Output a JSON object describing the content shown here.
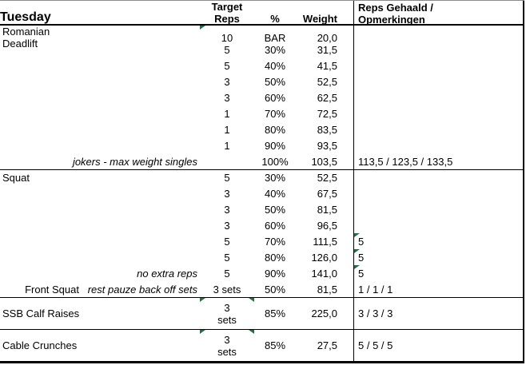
{
  "sheet": {
    "title": "Tuesday",
    "header": {
      "target": "Target\nReps",
      "percent": "%",
      "weight": "Weight",
      "comments": "Reps Gehaald /\nOpmerkingen"
    },
    "colors": {
      "indicator_green": "#1e7145",
      "border_black": "#000000",
      "background": "#ffffff"
    },
    "rows": [
      {
        "exercise": "Romanian Deadlift",
        "note": "",
        "target": "10",
        "percent": "BAR",
        "weight": "20,0",
        "comments": "",
        "indicators": {
          "target_left": true,
          "target_right": false,
          "comment_left": false
        },
        "section_start": false
      },
      {
        "exercise": "",
        "note": "",
        "target": "5",
        "percent": "30%",
        "weight": "31,5",
        "comments": "",
        "indicators": {
          "target_left": false,
          "target_right": false,
          "comment_left": false
        },
        "section_start": false
      },
      {
        "exercise": "",
        "note": "",
        "target": "5",
        "percent": "40%",
        "weight": "41,5",
        "comments": "",
        "indicators": {
          "target_left": false,
          "target_right": false,
          "comment_left": false
        },
        "section_start": false
      },
      {
        "exercise": "",
        "note": "",
        "target": "3",
        "percent": "50%",
        "weight": "52,5",
        "comments": "",
        "indicators": {
          "target_left": false,
          "target_right": false,
          "comment_left": false
        },
        "section_start": false
      },
      {
        "exercise": "",
        "note": "",
        "target": "3",
        "percent": "60%",
        "weight": "62,5",
        "comments": "",
        "indicators": {
          "target_left": false,
          "target_right": false,
          "comment_left": false
        },
        "section_start": false
      },
      {
        "exercise": "",
        "note": "",
        "target": "1",
        "percent": "70%",
        "weight": "72,5",
        "comments": "",
        "indicators": {
          "target_left": false,
          "target_right": false,
          "comment_left": false
        },
        "section_start": false
      },
      {
        "exercise": "",
        "note": "",
        "target": "1",
        "percent": "80%",
        "weight": "83,5",
        "comments": "",
        "indicators": {
          "target_left": false,
          "target_right": false,
          "comment_left": false
        },
        "section_start": false
      },
      {
        "exercise": "",
        "note": "",
        "target": "1",
        "percent": "90%",
        "weight": "93,5",
        "comments": "",
        "indicators": {
          "target_left": false,
          "target_right": false,
          "comment_left": false
        },
        "section_start": false
      },
      {
        "exercise": "",
        "note": "jokers - max weight singles",
        "target": "",
        "percent": "100%",
        "weight": "103,5",
        "comments": "113,5 / 123,5 / 133,5",
        "indicators": {
          "target_left": false,
          "target_right": false,
          "comment_left": false
        },
        "section_start": false
      },
      {
        "exercise": "Squat",
        "note": "",
        "target": "5",
        "percent": "30%",
        "weight": "52,5",
        "comments": "",
        "indicators": {
          "target_left": false,
          "target_right": false,
          "comment_left": false
        },
        "section_start": true
      },
      {
        "exercise": "",
        "note": "",
        "target": "3",
        "percent": "40%",
        "weight": "67,5",
        "comments": "",
        "indicators": {
          "target_left": false,
          "target_right": false,
          "comment_left": false
        },
        "section_start": false
      },
      {
        "exercise": "",
        "note": "",
        "target": "3",
        "percent": "50%",
        "weight": "81,5",
        "comments": "",
        "indicators": {
          "target_left": false,
          "target_right": false,
          "comment_left": false
        },
        "section_start": false
      },
      {
        "exercise": "",
        "note": "",
        "target": "3",
        "percent": "60%",
        "weight": "96,5",
        "comments": "",
        "indicators": {
          "target_left": false,
          "target_right": false,
          "comment_left": false
        },
        "section_start": false
      },
      {
        "exercise": "",
        "note": "",
        "target": "5",
        "percent": "70%",
        "weight": "111,5",
        "comments": "5",
        "indicators": {
          "target_left": false,
          "target_right": false,
          "comment_left": true
        },
        "section_start": false
      },
      {
        "exercise": "",
        "note": "",
        "target": "5",
        "percent": "80%",
        "weight": "126,0",
        "comments": "5",
        "indicators": {
          "target_left": false,
          "target_right": false,
          "comment_left": true
        },
        "section_start": false
      },
      {
        "exercise": "",
        "note": "no extra reps",
        "target": "5",
        "percent": "90%",
        "weight": "141,0",
        "comments": "5",
        "indicators": {
          "target_left": false,
          "target_right": false,
          "comment_left": true
        },
        "section_start": false
      },
      {
        "exercise": "Front Squat",
        "exercise_align": "right",
        "note": "rest pauze back off sets",
        "target": "3 sets",
        "percent": "50%",
        "weight": "81,5",
        "comments": "1 / 1 / 1",
        "indicators": {
          "target_left": false,
          "target_right": false,
          "comment_left": false
        },
        "section_start": false
      },
      {
        "exercise": "SSB Calf Raises",
        "note": "",
        "target": "3\nsets",
        "percent": "85%",
        "weight": "225,0",
        "comments": "3 / 3 / 3",
        "indicators": {
          "target_left": true,
          "target_right": true,
          "comment_left": false
        },
        "section_start": true
      },
      {
        "exercise": "Cable Crunches",
        "note": "",
        "target": "3\nsets",
        "percent": "85%",
        "weight": "27,5",
        "comments": "5 / 5 / 5",
        "indicators": {
          "target_left": true,
          "target_right": true,
          "comment_left": false
        },
        "section_start": true
      }
    ]
  }
}
